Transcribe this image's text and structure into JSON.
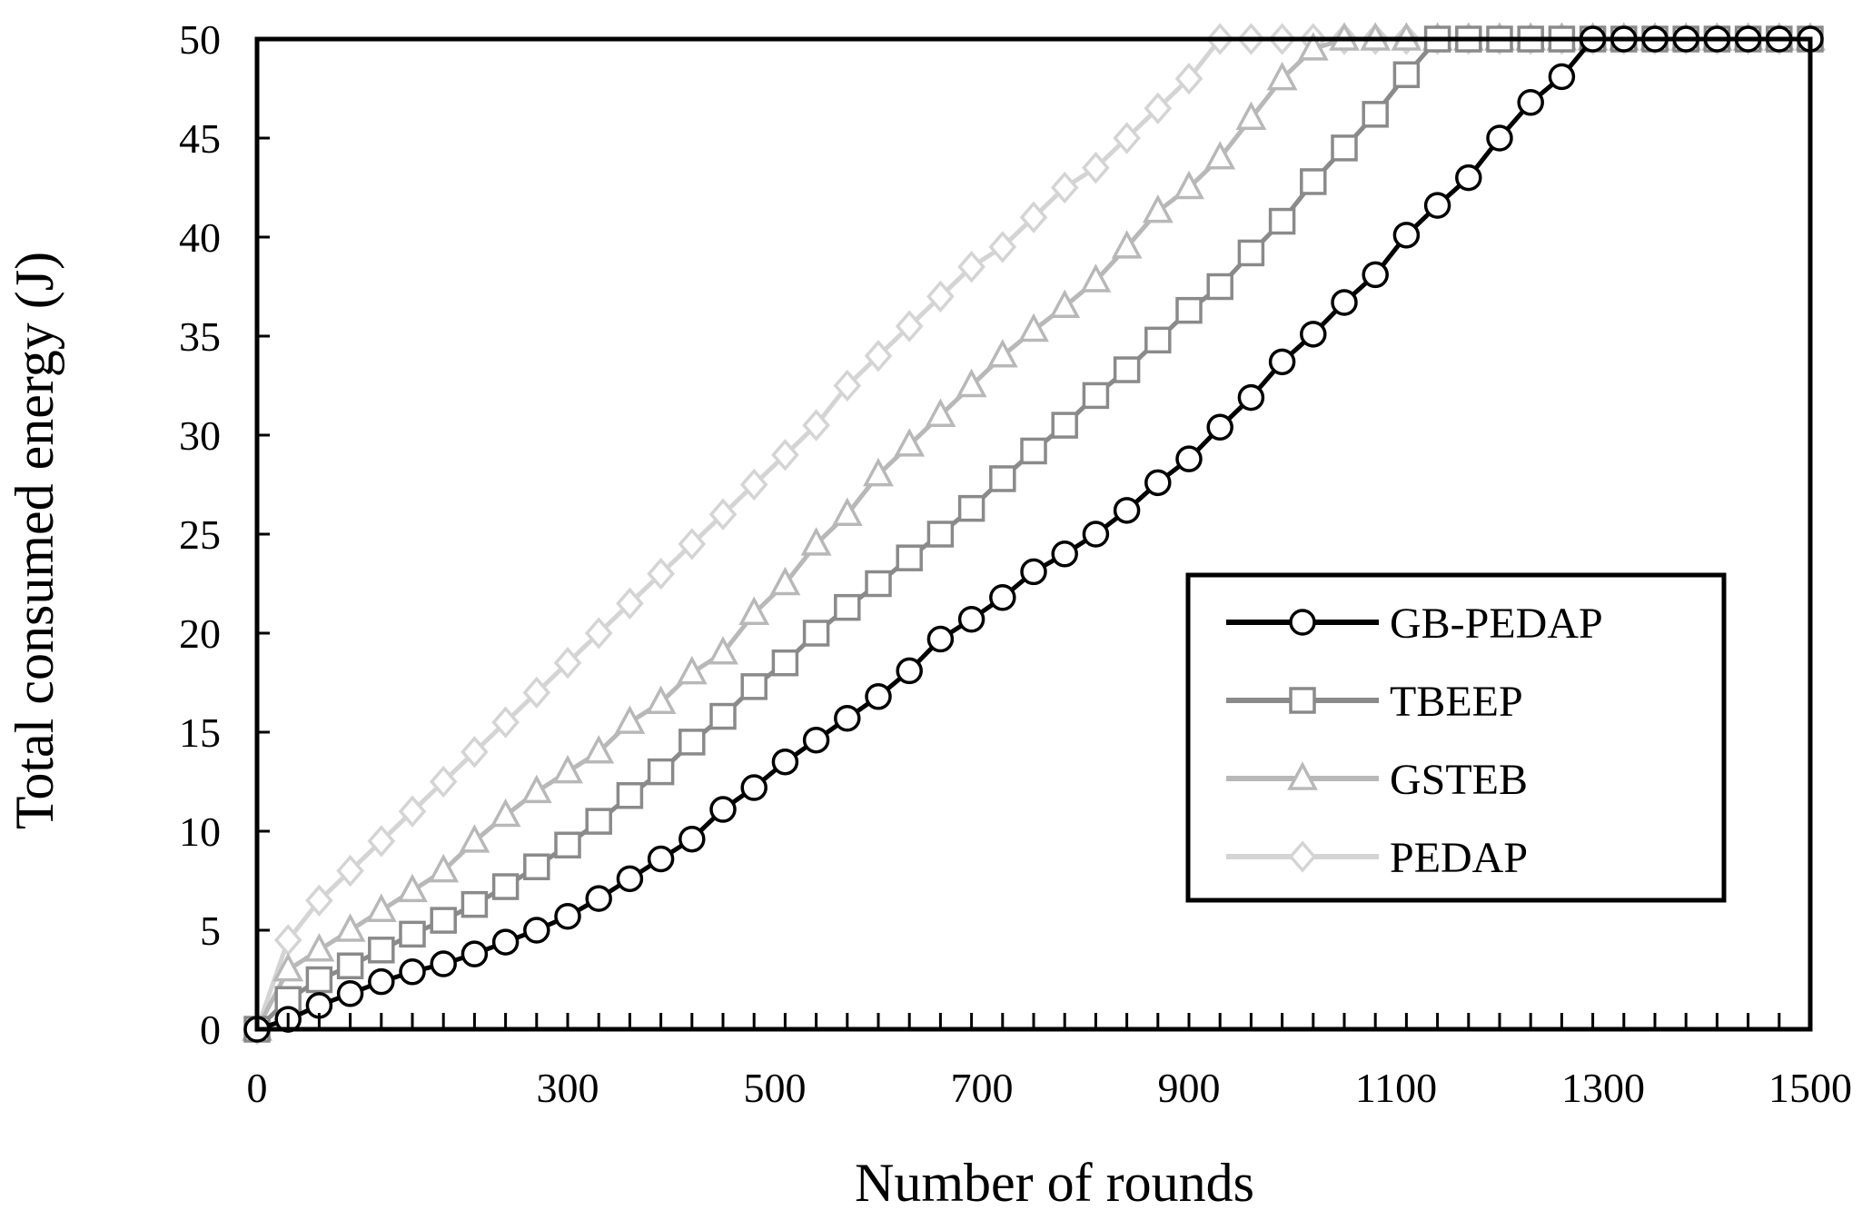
{
  "chart_data": {
    "type": "line",
    "xlabel": "Number of rounds",
    "ylabel": "Total consumed energy (J)",
    "xlim": [
      0,
      1500
    ],
    "ylim": [
      0,
      50
    ],
    "x_ticks": [
      "0",
      "300",
      "500",
      "700",
      "900",
      "1100",
      "1300",
      "1500"
    ],
    "x_tick_values": [
      0,
      300,
      500,
      700,
      900,
      1100,
      1300,
      1500
    ],
    "y_ticks": [
      "0",
      "5",
      "10",
      "15",
      "20",
      "25",
      "30",
      "35",
      "40",
      "45",
      "50"
    ],
    "y_tick_values": [
      0,
      5,
      10,
      15,
      20,
      25,
      30,
      35,
      40,
      45,
      50
    ],
    "grid": false,
    "legend_position": "right",
    "series": [
      {
        "name": "GB-PEDAP",
        "marker": "circle",
        "color": "#000000",
        "x": [
          0,
          30,
          60,
          90,
          120,
          150,
          180,
          210,
          240,
          270,
          300,
          330,
          360,
          390,
          420,
          450,
          480,
          510,
          540,
          570,
          600,
          630,
          660,
          690,
          720,
          750,
          780,
          810,
          840,
          870,
          900,
          930,
          960,
          990,
          1020,
          1050,
          1080,
          1110,
          1140,
          1170,
          1200,
          1230,
          1260,
          1290,
          1320,
          1350,
          1380,
          1410,
          1440,
          1470,
          1500
        ],
        "y": [
          0,
          0.5,
          1.2,
          1.8,
          2.4,
          2.9,
          3.3,
          3.8,
          4.4,
          5.0,
          5.7,
          6.6,
          7.6,
          8.6,
          9.6,
          11.1,
          12.2,
          13.5,
          14.6,
          15.7,
          16.8,
          18.1,
          19.7,
          20.7,
          21.8,
          23.1,
          24.0,
          25.0,
          26.2,
          27.6,
          28.8,
          30.4,
          31.9,
          33.7,
          35.1,
          36.7,
          38.1,
          40.1,
          41.6,
          43.0,
          45.0,
          46.8,
          48.1,
          50,
          50,
          50,
          50,
          50,
          50,
          50,
          50
        ]
      },
      {
        "name": "TBEEP",
        "marker": "square",
        "color": "#8a8a8a",
        "x": [
          0,
          30,
          60,
          90,
          120,
          150,
          180,
          210,
          240,
          270,
          300,
          330,
          360,
          390,
          420,
          450,
          480,
          510,
          540,
          570,
          600,
          630,
          660,
          690,
          720,
          750,
          780,
          810,
          840,
          870,
          900,
          930,
          960,
          990,
          1020,
          1050,
          1080,
          1110,
          1140,
          1170,
          1200,
          1230,
          1260,
          1290,
          1320,
          1350,
          1380,
          1410,
          1440,
          1470,
          1500
        ],
        "y": [
          0,
          1.5,
          2.5,
          3.2,
          4.0,
          4.8,
          5.5,
          6.3,
          7.2,
          8.2,
          9.3,
          10.5,
          11.8,
          13.0,
          14.5,
          15.8,
          17.3,
          18.5,
          20.0,
          21.3,
          22.5,
          23.8,
          25.0,
          26.3,
          27.8,
          29.2,
          30.5,
          32.0,
          33.3,
          34.8,
          36.3,
          37.5,
          39.2,
          40.8,
          42.8,
          44.5,
          46.2,
          48.2,
          50,
          50,
          50,
          50,
          50,
          50,
          50,
          50,
          50,
          50,
          50,
          50,
          50
        ]
      },
      {
        "name": "GSTEB",
        "marker": "triangle",
        "color": "#b8b8b8",
        "x": [
          0,
          30,
          60,
          90,
          120,
          150,
          180,
          210,
          240,
          270,
          300,
          330,
          360,
          390,
          420,
          450,
          480,
          510,
          540,
          570,
          600,
          630,
          660,
          690,
          720,
          750,
          780,
          810,
          840,
          870,
          900,
          930,
          960,
          990,
          1020,
          1050,
          1080,
          1110,
          1140,
          1170,
          1200,
          1230,
          1260,
          1290,
          1320,
          1350,
          1380,
          1410,
          1440,
          1470,
          1500
        ],
        "y": [
          0,
          3.0,
          4.0,
          5.0,
          6.0,
          7.0,
          8.0,
          9.5,
          10.8,
          12.0,
          13.0,
          14.0,
          15.5,
          16.5,
          18.0,
          19.0,
          21.0,
          22.5,
          24.5,
          26.0,
          28.0,
          29.5,
          31.0,
          32.5,
          34.0,
          35.3,
          36.5,
          37.8,
          39.5,
          41.3,
          42.5,
          44.0,
          46.0,
          48.0,
          49.5,
          50,
          50,
          50,
          50,
          50,
          50,
          50,
          50,
          50,
          50,
          50,
          50,
          50,
          50,
          50,
          50
        ]
      },
      {
        "name": "PEDAP",
        "marker": "diamond",
        "color": "#d4d4d4",
        "x": [
          0,
          30,
          60,
          90,
          120,
          150,
          180,
          210,
          240,
          270,
          300,
          330,
          360,
          390,
          420,
          450,
          480,
          510,
          540,
          570,
          600,
          630,
          660,
          690,
          720,
          750,
          780,
          810,
          840,
          870,
          900,
          930,
          960,
          990,
          1020,
          1050,
          1080,
          1110,
          1140,
          1170,
          1200,
          1230,
          1260,
          1290,
          1320,
          1350,
          1380,
          1410,
          1440,
          1470,
          1500
        ],
        "y": [
          0,
          4.5,
          6.5,
          8.0,
          9.5,
          11.0,
          12.5,
          14.0,
          15.5,
          17.0,
          18.5,
          20.0,
          21.5,
          23.0,
          24.5,
          26.0,
          27.5,
          29.0,
          30.5,
          32.5,
          34.0,
          35.5,
          37.0,
          38.5,
          39.5,
          41.0,
          42.5,
          43.5,
          45.0,
          46.5,
          48.0,
          50,
          50,
          50,
          50,
          50,
          50,
          50,
          50,
          50,
          50,
          50,
          50,
          50,
          50,
          50,
          50,
          50,
          50,
          50,
          50
        ]
      }
    ]
  }
}
